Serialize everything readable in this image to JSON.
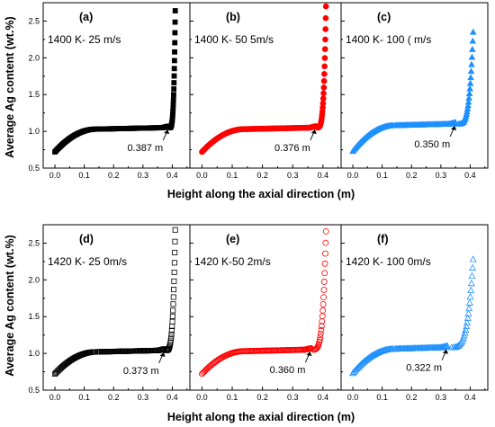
{
  "chart_data": {
    "type": "scatter",
    "xlabel": "Height along the axial direction (m)",
    "ylabel": "Average Ag content (wt.%)",
    "xlim": [
      -0.04,
      0.46
    ],
    "ylim": [
      0.5,
      2.75
    ],
    "xticks": [
      "0.0",
      "0.1",
      "0.2",
      "0.3",
      "0.4"
    ],
    "yticks": [
      "0.5",
      "1.0",
      "1.5",
      "2.0",
      "2.5"
    ],
    "panels": [
      {
        "label": "(a)",
        "condition": "1400 K- 25   m/s",
        "color": "#000000",
        "marker": "square",
        "filled": true,
        "knee": 0.387,
        "annotation": "0.387 m",
        "y_start": 0.72,
        "plateau": 1.05,
        "y_end": 2.64
      },
      {
        "label": "(b)",
        "condition": "1400 K- 50 5m/s",
        "color": "#ff0000",
        "marker": "circle",
        "filled": true,
        "knee": 0.376,
        "annotation": "0.376 m",
        "y_start": 0.72,
        "plateau": 1.05,
        "y_end": 2.7
      },
      {
        "label": "(c)",
        "condition": "1400 K- 100 ( m/s",
        "color": "#1e90ff",
        "marker": "triangle",
        "filled": true,
        "knee": 0.35,
        "annotation": "0.350 m",
        "y_start": 0.73,
        "plateau": 1.1,
        "y_end": 2.35
      },
      {
        "label": "(d)",
        "condition": "1420 K- 25 0m/s",
        "color": "#000000",
        "marker": "square",
        "filled": false,
        "knee": 0.373,
        "annotation": "0.373 m",
        "y_start": 0.72,
        "plateau": 1.04,
        "y_end": 2.68
      },
      {
        "label": "(e)",
        "condition": "1420 K-50 2m/s",
        "color": "#ff0000",
        "marker": "circle",
        "filled": false,
        "knee": 0.36,
        "annotation": "0.360 m",
        "y_start": 0.72,
        "plateau": 1.05,
        "y_end": 2.66
      },
      {
        "label": "(f)",
        "condition": "1420 K- 100 0m/s",
        "color": "#1e90ff",
        "marker": "triangle",
        "filled": false,
        "knee": 0.322,
        "annotation": "0.322 m",
        "y_start": 0.73,
        "plateau": 1.08,
        "y_end": 2.28
      }
    ]
  }
}
